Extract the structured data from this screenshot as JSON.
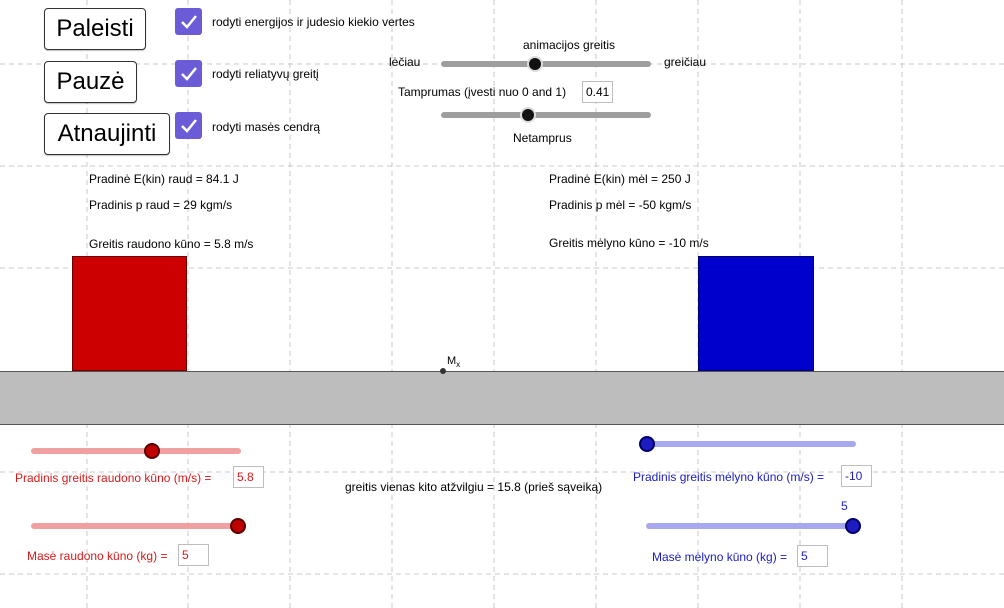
{
  "buttons": {
    "play": "Paleisti",
    "pause": "Pauzė",
    "reset": "Atnaujinti"
  },
  "checkboxes": {
    "energy": "rodyti energijos ir judesio kiekio vertes",
    "relative": "rodyti reliatyvų greitį",
    "center_of_mass": "rodyti masės cendrą"
  },
  "animation": {
    "title": "animacijos greitis",
    "slower": "lėčiau",
    "faster": "greičiau"
  },
  "elasticity": {
    "label": "Tamprumas (įvesti nuo 0 and 1)",
    "value": "0.41",
    "below_label": "Netamprus"
  },
  "red_info": {
    "energy": "Pradinė E(kin) raud = 84.1 J",
    "momentum": "Pradinis p raud = 29 kgm/s",
    "speed": "Greitis raudono kūno = 5.8 m/s"
  },
  "blue_info": {
    "energy": "Pradinė E(kin) mėl = 250 J",
    "momentum": "Pradinis p mėl = -50 kgm/s",
    "speed": "Greitis mėlyno kūno = -10 m/s"
  },
  "center_marker": {
    "label": "M",
    "subscript": "x"
  },
  "relative_speed": "greitis vienas kito atžvilgiu = 15.8 (prieš sąveiką)",
  "red_controls": {
    "speed_label": "Pradinis greitis  raudono kūno (m/s) =",
    "speed_value": "5.8",
    "mass_label": "Masė raudono kūno (kg) =",
    "mass_value": "5"
  },
  "blue_controls": {
    "speed_label": "Pradinis greitis mėlyno kūno (m/s) =",
    "speed_value": "-10",
    "mass_label": "Masė mėlyno kūno (kg) =",
    "mass_value": "5",
    "mass_slider_caption": "5"
  },
  "colors": {
    "red_body": "#cc0000",
    "blue_body": "#0000cc",
    "floor": "#bdbdbd",
    "checkbox": "#6b5bd6",
    "red_text": "#d91a1a",
    "blue_text": "#1c1cc0"
  },
  "sliders": {
    "animation_speed_level": 0.45,
    "elasticity_level": 0.41,
    "red_speed_level": 0.58,
    "red_mass_level": 1.0,
    "blue_speed_level": 0.0,
    "blue_mass_level": 1.0
  }
}
